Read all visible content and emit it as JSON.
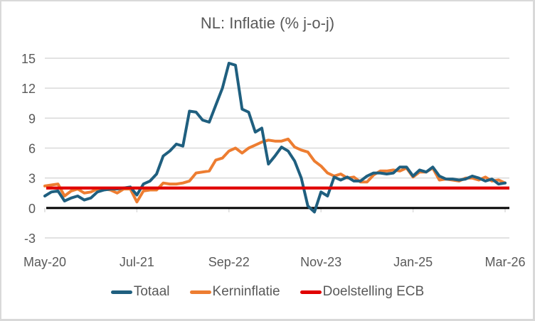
{
  "chart_data": {
    "type": "line",
    "title": "NL: Inflatie (% j-o-j)",
    "xlabel": "",
    "ylabel": "",
    "ylim": [
      -3,
      15
    ],
    "yticks": [
      -3,
      0,
      3,
      6,
      9,
      12,
      15
    ],
    "ytick_labels": [
      "-3",
      "0",
      "3",
      "6",
      "9",
      "12",
      "15"
    ],
    "xtick_labels": [
      "May-20",
      "Jul-21",
      "Sep-22",
      "Nov-23",
      "Jan-25",
      "Mar-26"
    ],
    "xtick_months": [
      0,
      14,
      28,
      42,
      56,
      70
    ],
    "x_start": "May-20",
    "x_unit": "month",
    "grid": true,
    "legend_position": "bottom",
    "series": [
      {
        "name": "Totaal",
        "color": "#1f5f7f",
        "values": [
          1.2,
          1.6,
          1.7,
          0.7,
          1.0,
          1.2,
          0.8,
          1.0,
          1.6,
          1.8,
          1.9,
          1.9,
          2.0,
          2.1,
          1.3,
          2.4,
          2.7,
          3.4,
          5.2,
          5.7,
          6.4,
          6.2,
          9.7,
          9.6,
          8.8,
          8.6,
          10.3,
          12.0,
          14.5,
          14.3,
          9.9,
          9.6,
          7.6,
          8.0,
          4.4,
          5.2,
          6.1,
          5.7,
          4.7,
          3.0,
          0.2,
          -0.4,
          1.6,
          1.2,
          3.1,
          2.8,
          3.1,
          2.7,
          2.7,
          3.2,
          3.5,
          3.5,
          3.4,
          3.5,
          4.1,
          4.1,
          3.2,
          3.8,
          3.6,
          4.1,
          3.2,
          2.9,
          2.9,
          2.8,
          2.9,
          3.2,
          3.0,
          2.7,
          2.9,
          2.4,
          2.5
        ]
      },
      {
        "name": "Kerninflatie",
        "color": "#ed7d31",
        "values": [
          2.2,
          2.3,
          2.4,
          1.2,
          1.7,
          1.9,
          1.5,
          1.6,
          1.9,
          1.9,
          1.8,
          1.5,
          1.9,
          1.9,
          0.6,
          1.7,
          1.8,
          1.8,
          2.5,
          2.4,
          2.4,
          2.5,
          2.7,
          3.5,
          3.6,
          3.7,
          4.8,
          5.0,
          5.7,
          6.0,
          5.5,
          6.0,
          6.3,
          6.6,
          6.8,
          6.7,
          6.7,
          6.9,
          6.1,
          5.8,
          5.6,
          4.7,
          4.2,
          3.5,
          3.2,
          3.4,
          3.0,
          3.1,
          2.6,
          2.6,
          3.3,
          3.7,
          3.7,
          3.8,
          3.7,
          4.0,
          3.1,
          3.6,
          3.6,
          4.0,
          2.8,
          2.9,
          2.8,
          2.7,
          3.0,
          3.0,
          2.8,
          3.1,
          2.7,
          2.8,
          2.5
        ]
      },
      {
        "name": "Doelstelling ECB",
        "color": "#e00000",
        "values": [
          2.0,
          2.0
        ]
      }
    ]
  },
  "colors": {
    "grid": "#d9d9d9",
    "zero_line": "#000000",
    "text": "#595959"
  }
}
